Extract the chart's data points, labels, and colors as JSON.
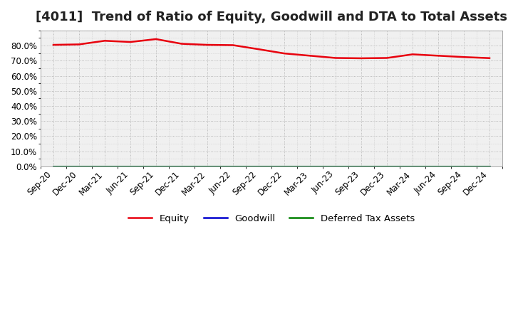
{
  "title": "[4011]  Trend of Ratio of Equity, Goodwill and DTA to Total Assets",
  "x_labels": [
    "Sep-20",
    "Dec-20",
    "Mar-21",
    "Jun-21",
    "Sep-21",
    "Dec-21",
    "Mar-22",
    "Jun-22",
    "Sep-22",
    "Dec-22",
    "Mar-23",
    "Jun-23",
    "Sep-23",
    "Dec-23",
    "Mar-24",
    "Jun-24",
    "Sep-24",
    "Dec-24"
  ],
  "equity": [
    0.805,
    0.808,
    0.832,
    0.824,
    0.843,
    0.812,
    0.805,
    0.803,
    0.776,
    0.748,
    0.733,
    0.718,
    0.716,
    0.718,
    0.742,
    0.733,
    0.724,
    0.717
  ],
  "goodwill": [
    0.0,
    0.0,
    0.0,
    0.0,
    0.0,
    0.0,
    0.0,
    0.0,
    0.0,
    0.0,
    0.0,
    0.0,
    0.0,
    0.0,
    0.0,
    0.0,
    0.0,
    0.0
  ],
  "dta": [
    0.0,
    0.0,
    0.0,
    0.0,
    0.0,
    0.0,
    0.0,
    0.0,
    0.0,
    0.0,
    0.0,
    0.0,
    0.0,
    0.0,
    0.0,
    0.0,
    0.0,
    0.0
  ],
  "equity_color": "#e8000d",
  "goodwill_color": "#0000cd",
  "dta_color": "#008000",
  "ylim": [
    0.0,
    0.9
  ],
  "yticks": [
    0.0,
    0.1,
    0.2,
    0.3,
    0.4,
    0.5,
    0.6,
    0.7,
    0.8
  ],
  "background_color": "#ffffff",
  "plot_bg_color": "#f0f0f0",
  "grid_color": "#ffffff",
  "title_fontsize": 13,
  "legend_labels": [
    "Equity",
    "Goodwill",
    "Deferred Tax Assets"
  ]
}
